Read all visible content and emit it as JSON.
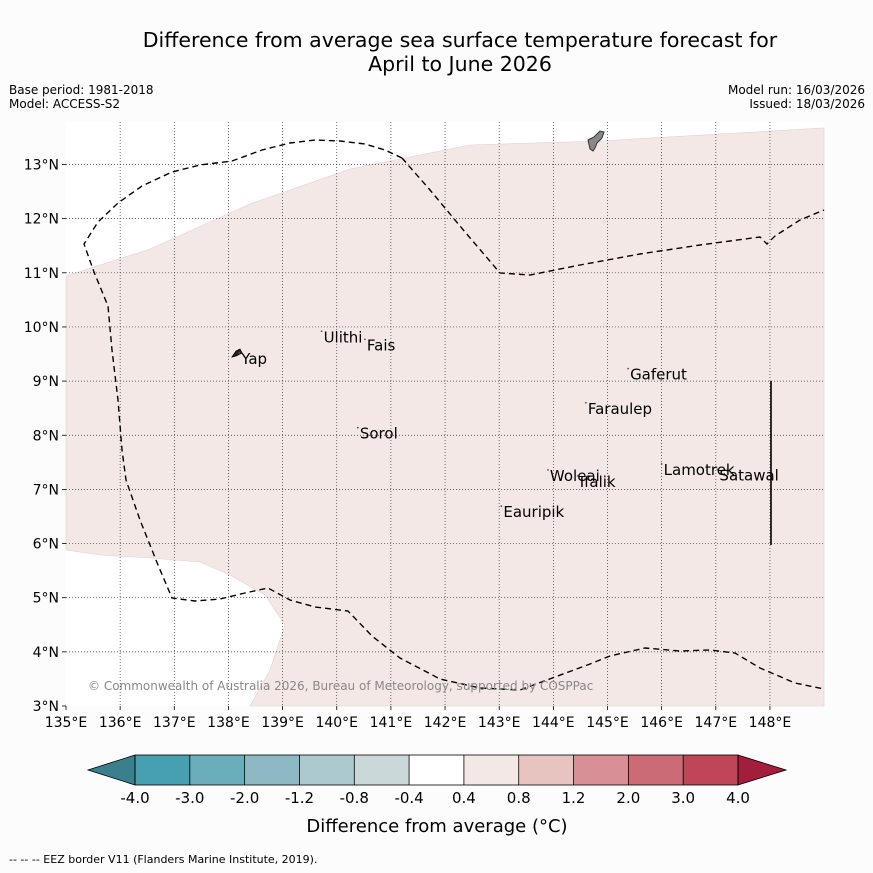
{
  "title": {
    "line1": "Difference from average sea surface temperature forecast for",
    "line2": "April to June 2026"
  },
  "meta_left": {
    "base_period": "Base period: 1981-2018",
    "model": "Model: ACCESS-S2"
  },
  "meta_right": {
    "model_run": "Model run: 16/03/2026",
    "issued": "Issued: 18/03/2026"
  },
  "map": {
    "lat_ticks": [
      {
        "value": 13,
        "label": "13°N"
      },
      {
        "value": 12,
        "label": "12°N"
      },
      {
        "value": 11,
        "label": "11°N"
      },
      {
        "value": 10,
        "label": "10°N"
      },
      {
        "value": 9,
        "label": "9°N"
      },
      {
        "value": 8,
        "label": "8°N"
      },
      {
        "value": 7,
        "label": "7°N"
      },
      {
        "value": 6,
        "label": "6°N"
      },
      {
        "value": 5,
        "label": "5°N"
      },
      {
        "value": 4,
        "label": "4°N"
      },
      {
        "value": 3,
        "label": "3°N"
      }
    ],
    "lon_ticks": [
      {
        "value": 135,
        "label": "135°E"
      },
      {
        "value": 136,
        "label": "136°E"
      },
      {
        "value": 137,
        "label": "137°E"
      },
      {
        "value": 138,
        "label": "138°E"
      },
      {
        "value": 139,
        "label": "139°E"
      },
      {
        "value": 140,
        "label": "140°E"
      },
      {
        "value": 141,
        "label": "141°E"
      },
      {
        "value": 142,
        "label": "142°E"
      },
      {
        "value": 143,
        "label": "143°E"
      },
      {
        "value": 144,
        "label": "144°E"
      },
      {
        "value": 145,
        "label": "145°E"
      },
      {
        "value": 146,
        "label": "146°E"
      },
      {
        "value": 147,
        "label": "147°E"
      },
      {
        "value": 148,
        "label": "148°E"
      }
    ],
    "places": [
      {
        "name": "Ulithi",
        "lon": 139.72,
        "lat": 9.92
      },
      {
        "name": "Fais",
        "lon": 140.52,
        "lat": 9.77
      },
      {
        "name": "Yap",
        "lon": 138.2,
        "lat": 9.52
      },
      {
        "name": "Gaferut",
        "lon": 145.38,
        "lat": 9.23
      },
      {
        "name": "Faraulep",
        "lon": 144.6,
        "lat": 8.6
      },
      {
        "name": "Sorol",
        "lon": 140.39,
        "lat": 8.14
      },
      {
        "name": "Lamotrek",
        "lon": 146.0,
        "lat": 7.47
      },
      {
        "name": "Woleai",
        "lon": 143.9,
        "lat": 7.36
      },
      {
        "name": "Ifalik",
        "lon": 144.45,
        "lat": 7.25
      },
      {
        "name": "Satawal",
        "lon": 147.03,
        "lat": 7.37
      },
      {
        "name": "Eauripik",
        "lon": 143.04,
        "lat": 6.69
      }
    ],
    "anomaly_fill_color": "#f4e8e7",
    "copyright": "© Commonwealth of Australia 2026, Bureau of Meteorology, supported by COSPPac"
  },
  "colorbar": {
    "ticks": [
      "-4.0",
      "-3.0",
      "-2.0",
      "-1.2",
      "-0.8",
      "-0.4",
      "0.4",
      "0.8",
      "1.2",
      "2.0",
      "3.0",
      "4.0"
    ],
    "under_color": "#3a808c",
    "over_color": "#a31d3c",
    "colors": [
      "#47a0b1",
      "#6aaebb",
      "#8db9c4",
      "#abc9cf",
      "#cbd8d9",
      "#ffffff",
      "#f4e8e7",
      "#e8c4c0",
      "#d88f95",
      "#cc6a75",
      "#c04557"
    ],
    "label": "Difference from average (°C)"
  },
  "legend": {
    "eez": "--  --  -- EEZ border V11 (Flanders Marine Institute, 2019)."
  }
}
